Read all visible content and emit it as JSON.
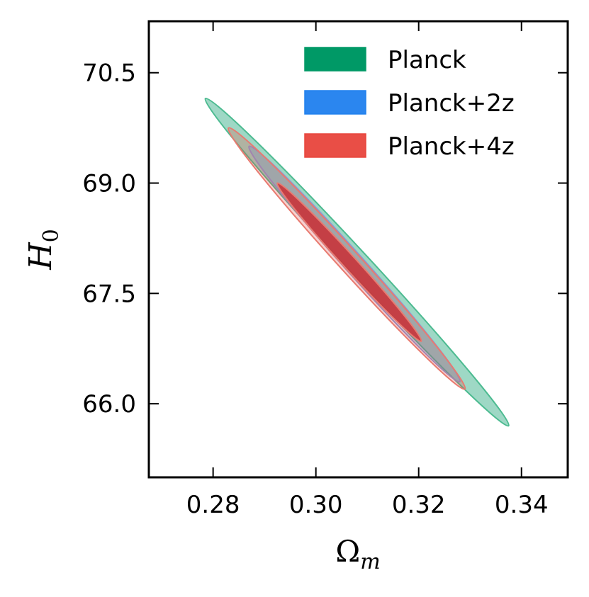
{
  "chart_data": {
    "type": "contour",
    "title": "",
    "xlabel": "Ω",
    "xlabel_sub": "m",
    "ylabel": "H",
    "ylabel_sub": "0",
    "xlim": [
      0.2675,
      0.349
    ],
    "ylim": [
      65.0,
      71.2
    ],
    "xticks": [
      0.28,
      0.3,
      0.32,
      0.34
    ],
    "xtick_labels": [
      "0.28",
      "0.30",
      "0.32",
      "0.34"
    ],
    "yticks": [
      66.0,
      67.5,
      69.0,
      70.5
    ],
    "ytick_labels": [
      "66.0",
      "67.5",
      "69.0",
      "70.5"
    ],
    "legend_position": "top-right",
    "series": [
      {
        "name": "Planck",
        "fill": "#009966",
        "fill_opacity": 0.38,
        "stroke": "#4dbb91",
        "contours": [
          {
            "level": "95%",
            "center": [
              0.308,
              67.9
            ],
            "extreme_x": [
              0.2785,
              70.15
            ],
            "extreme_y": [
              0.3375,
              65.7
            ],
            "half_width": 0.0022
          }
        ]
      },
      {
        "name": "Planck+2z",
        "fill": "#3b8cf0",
        "fill_opacity": 0.22,
        "stroke": "#8a9ad6",
        "contours": [
          {
            "level": "95%",
            "center": [
              0.3075,
              67.9
            ],
            "extreme_x": [
              0.287,
              69.5
            ],
            "extreme_y": [
              0.328,
              66.3
            ],
            "half_width": 0.0019
          }
        ]
      },
      {
        "name": "Planck+4z",
        "fill": "#e8453c",
        "fill_opacity": 0.25,
        "stroke": "#e87a70",
        "contours": [
          {
            "level": "95%",
            "center": [
              0.3065,
              68.0
            ],
            "extreme_x": [
              0.283,
              69.75
            ],
            "extreme_y": [
              0.329,
              66.2
            ],
            "half_width": 0.0021
          },
          {
            "level": "68%",
            "center": [
              0.3065,
              67.95
            ],
            "extreme_x": [
              0.2925,
              69.0
            ],
            "extreme_y": [
              0.3205,
              66.85
            ],
            "half_width": 0.0013,
            "fill": "#c8343a",
            "fill_opacity": 0.9
          }
        ]
      }
    ],
    "legend": [
      {
        "label": "Planck",
        "color": "#009966"
      },
      {
        "label": "Planck+2z",
        "color": "#2080ee"
      },
      {
        "label": "Planck+4z",
        "color": "#e8453c"
      }
    ]
  }
}
